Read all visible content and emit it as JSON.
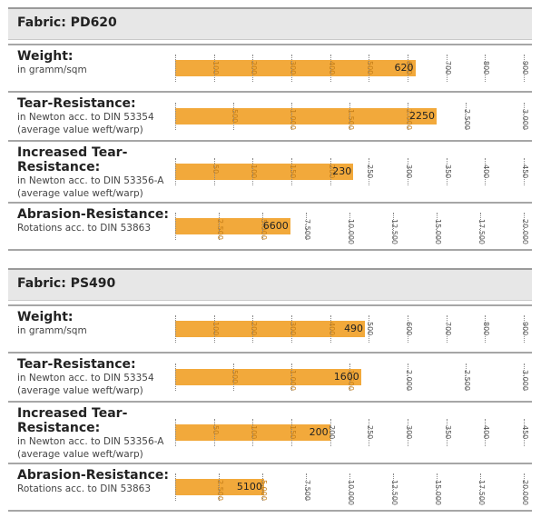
{
  "panels": [
    {
      "title": "Fabric: PD620",
      "rows": [
        {
          "title": "Weight:",
          "subtitle": "in gramm/sqm",
          "value": 620,
          "value_label": "620",
          "max": 900,
          "ticks": [
            0,
            100,
            200,
            300,
            400,
            500,
            600,
            700,
            800,
            900
          ],
          "tick_labels": [
            "",
            "100",
            "200",
            "300",
            "400",
            "500",
            "600",
            "700",
            "800",
            "900"
          ]
        },
        {
          "title": "Tear-Resistance:",
          "subtitle": "in Newton acc. to DIN 53354 (average value weft/warp)",
          "value": 2250,
          "value_label": "2250",
          "max": 3000,
          "ticks": [
            0,
            500,
            1000,
            1500,
            2000,
            2500,
            3000
          ],
          "tick_labels": [
            "",
            "500",
            "1.000",
            "1.500",
            "2.000",
            "2.500",
            "3.000"
          ]
        },
        {
          "title": "Increased Tear-Resistance:",
          "subtitle": "in Newton acc. to DIN 53356-A (average value weft/warp)",
          "value": 230,
          "value_label": "230",
          "max": 450,
          "ticks": [
            0,
            50,
            100,
            150,
            200,
            250,
            300,
            350,
            400,
            450
          ],
          "tick_labels": [
            "",
            "50",
            "100",
            "150",
            "200",
            "250",
            "300",
            "350",
            "400",
            "450"
          ]
        },
        {
          "title": "Abrasion-Resistance:",
          "subtitle": "Rotations acc. to DIN 53863",
          "value": 6600,
          "value_label": "6600",
          "max": 20000,
          "ticks": [
            0,
            2500,
            5000,
            7500,
            10000,
            12500,
            15000,
            17500,
            20000
          ],
          "tick_labels": [
            "",
            "2.500",
            "5.000",
            "7.500",
            "10.000",
            "12.500",
            "15.000",
            "17.500",
            "20.000"
          ]
        }
      ]
    },
    {
      "title": "Fabric: PS490",
      "rows": [
        {
          "title": "Weight:",
          "subtitle": "in gramm/sqm",
          "value": 490,
          "value_label": "490",
          "max": 900,
          "ticks": [
            0,
            100,
            200,
            300,
            400,
            500,
            600,
            700,
            800,
            900
          ],
          "tick_labels": [
            "",
            "100",
            "200",
            "300",
            "400",
            "500",
            "600",
            "700",
            "800",
            "900"
          ]
        },
        {
          "title": "Tear-Resistance:",
          "subtitle": "in Newton acc. to DIN 53354 (average value weft/warp)",
          "value": 1600,
          "value_label": "1600",
          "max": 3000,
          "ticks": [
            0,
            500,
            1000,
            1500,
            2000,
            2500,
            3000
          ],
          "tick_labels": [
            "",
            "500",
            "1.000",
            "1.500",
            "2.000",
            "2.500",
            "3.000"
          ]
        },
        {
          "title": "Increased Tear-Resistance:",
          "subtitle": "in Newton acc. to DIN 53356-A (average value weft/warp)",
          "value": 200,
          "value_label": "200",
          "max": 450,
          "ticks": [
            0,
            50,
            100,
            150,
            200,
            250,
            300,
            350,
            400,
            450
          ],
          "tick_labels": [
            "",
            "50",
            "100",
            "150",
            "200",
            "250",
            "300",
            "350",
            "400",
            "450"
          ]
        },
        {
          "title": "Abrasion-Resistance:",
          "subtitle": "Rotations acc. to DIN 53863",
          "value": 5100,
          "value_label": "5100",
          "max": 20000,
          "ticks": [
            0,
            2500,
            5000,
            7500,
            10000,
            12500,
            15000,
            17500,
            20000
          ],
          "tick_labels": [
            "",
            "2.500",
            "5.000",
            "7.500",
            "10.000",
            "12.500",
            "15.000",
            "17.500",
            "20.000"
          ]
        }
      ]
    }
  ],
  "chart_data": [
    {
      "type": "bar",
      "title": "Fabric: PD620",
      "categories": [
        "Weight:",
        "Tear-Resistance:",
        "Increased Tear-Resistance:",
        "Abrasion-Resistance:"
      ],
      "values": [
        620,
        2250,
        230,
        6600
      ],
      "xlims": [
        [
          0,
          900
        ],
        [
          0,
          3000
        ],
        [
          0,
          450
        ],
        [
          0,
          20000
        ]
      ],
      "orientation": "horizontal"
    },
    {
      "type": "bar",
      "title": "Fabric: PS490",
      "categories": [
        "Weight:",
        "Tear-Resistance:",
        "Increased Tear-Resistance:",
        "Abrasion-Resistance:"
      ],
      "values": [
        490,
        1600,
        200,
        5100
      ],
      "xlims": [
        [
          0,
          900
        ],
        [
          0,
          3000
        ],
        [
          0,
          450
        ],
        [
          0,
          20000
        ]
      ],
      "orientation": "horizontal"
    }
  ],
  "colors": {
    "bar": "#f2a93b",
    "header_bg": "#e7e7e7",
    "rule": "#a6a6a6"
  }
}
